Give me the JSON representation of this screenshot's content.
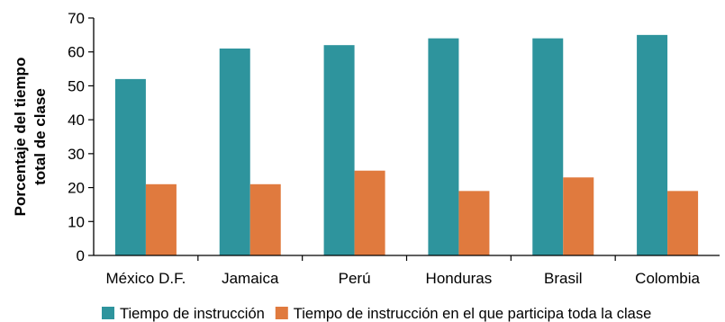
{
  "chart_data": {
    "type": "bar",
    "title": "",
    "xlabel": "",
    "ylabel_lines": [
      "Porcentaje del tiempo",
      "total de clase"
    ],
    "categories": [
      "México D.F.",
      "Jamaica",
      "Perú",
      "Honduras",
      "Brasil",
      "Colombia"
    ],
    "series": [
      {
        "name": "Tiempo de instrucción",
        "color": "#2e949d",
        "values": [
          52,
          61,
          62,
          64,
          64,
          65
        ]
      },
      {
        "name": "Tiempo de instrucción en el que participa toda la clase",
        "color": "#e07a3e",
        "values": [
          21,
          21,
          25,
          19,
          23,
          19
        ]
      }
    ],
    "ylim": [
      0,
      70
    ],
    "yticks": [
      0,
      10,
      20,
      30,
      40,
      50,
      60,
      70
    ],
    "grid": false,
    "legend_position": "bottom"
  }
}
